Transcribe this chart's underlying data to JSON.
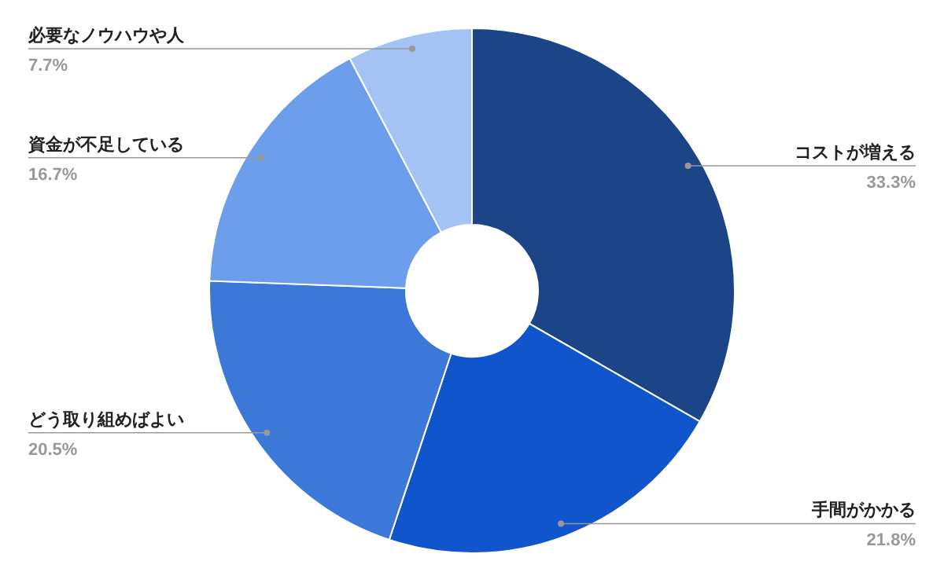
{
  "chart_data": {
    "type": "donut",
    "categories": [
      "コストが増える",
      "手間がかかる",
      "どう取り組めばよい",
      "資金が不足している",
      "必要なノウハウや人"
    ],
    "values": [
      33.3,
      21.8,
      20.5,
      16.7,
      7.7
    ],
    "colors": [
      "#1c4587",
      "#1155cc",
      "#3c78d8",
      "#6d9eeb",
      "#a4c2f4"
    ],
    "value_labels": [
      "33.3%",
      "21.8%",
      "20.5%",
      "16.7%",
      "7.7%"
    ]
  }
}
